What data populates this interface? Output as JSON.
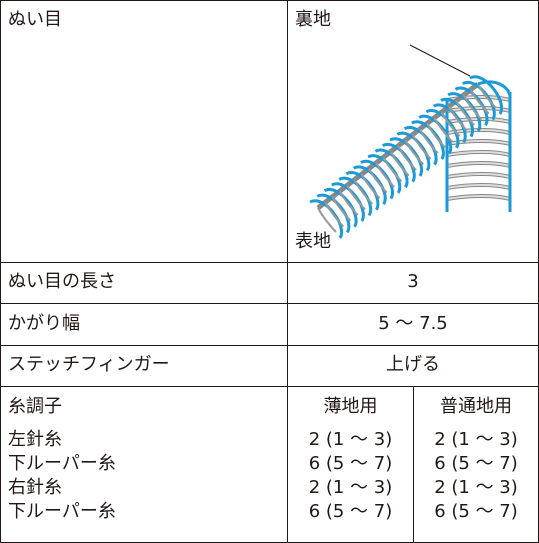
{
  "stitch": {
    "label": "ぬい目",
    "reverse": "裏地",
    "front": "表地"
  },
  "rows": [
    [
      "ぬい目の長さ",
      "3"
    ],
    [
      "かがり幅",
      "5 〜 7.5"
    ],
    [
      "ステッチフィンガー",
      "上げる"
    ]
  ],
  "tension": {
    "label": "糸調子",
    "columns": [
      "薄地用",
      "普通地用"
    ],
    "rows": [
      [
        "左針糸",
        "2 (1 〜 3)",
        "2 (1 〜 3)"
      ],
      [
        "下ルーパー糸",
        "6 (5 〜 7)",
        "6 (5 〜 7)"
      ],
      [
        "右針糸",
        "2 (1 〜 3)",
        "2 (1 〜 3)"
      ],
      [
        "下ルーパー糸",
        "6 (5 〜 7)",
        "6 (5 〜 7)"
      ]
    ]
  }
}
